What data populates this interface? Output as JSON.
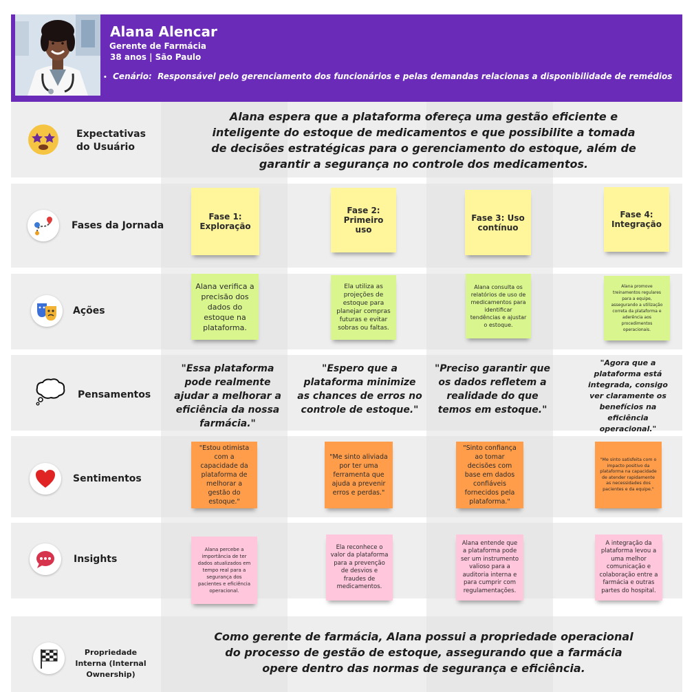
{
  "persona": {
    "name": "Alana Alencar",
    "role": "Gerente de Farmácia",
    "age_city": "38 anos | São Paulo",
    "scenario_label": "Cenário:",
    "scenario_text": "Responsável pelo gerenciamento dos funcionários e pelas demandas relacionas a disponibilidade de remédios"
  },
  "rows": {
    "expectations": {
      "label": "Expectativas do Usuário",
      "text": "Alana espera que a plataforma ofereça uma gestão eficiente e inteligente do estoque de medicamentos e que possibilite a tomada de decisões estratégicas para o gerenciamento do estoque, além de garantir a segurança no controle dos medicamentos."
    },
    "phases": {
      "label": "Fases da Jornada",
      "items": [
        "Fase 1: Exploração",
        "Fase 2: Primeiro uso",
        "Fase 3: Uso contínuo",
        "Fase 4: Integração"
      ]
    },
    "actions": {
      "label": "Ações",
      "items": [
        "Alana verifica a precisão dos dados do estoque na plataforma.",
        "Ela utiliza as projeções de estoque para planejar compras futuras e evitar sobras ou faltas.",
        "Alana consulta os relatórios de uso de medicamentos para identificar tendências e ajustar o estoque.",
        "Alana promove treinamentos regulares para a equipe, assegurando a utilização correta da plataforma e aderência aos procedimentos operacionais."
      ]
    },
    "thoughts": {
      "label": "Pensamentos",
      "items": [
        "\"Essa plataforma pode realmente ajudar a melhorar a eficiência da nossa farmácia.\"",
        "\"Espero que a plataforma minimize as chances de erros no controle de estoque.\"",
        "\"Preciso garantir que os dados refletem a realidade do que temos em estoque.\"",
        "\"Agora que a plataforma está integrada, consigo ver claramente os benefícios na eficiência operacional.\""
      ]
    },
    "feelings": {
      "label": "Sentimentos",
      "items": [
        "\"Estou otimista com a capacidade da plataforma de melhorar a gestão do estoque.\"",
        "\"Me sinto aliviada por ter uma ferramenta que ajuda a prevenir erros e perdas.\"",
        "\"Sinto confiança ao tomar decisões com base em dados confiáveis fornecidos pela plataforma.\"",
        "\"Me sinto satisfeita com o impacto positivo da plataforma na capacidade de atender rapidamente as necessidades dos pacientes e da equipe.\""
      ]
    },
    "insights": {
      "label": "Insights",
      "items": [
        "Alana percebe a importância de ter dados atualizados em tempo real para a segurança dos pacientes e eficiência operacional.",
        "Ela reconhece o valor da plataforma para a prevenção de desvios e fraudes de medicamentos.",
        "Alana entende que a plataforma pode ser um instrumento valioso para a auditoria interna e para cumprir com regulamentações.",
        "A integração da plataforma levou a uma melhor comunicação e colaboração entre a farmácia e outras partes do hospital."
      ]
    },
    "ownership": {
      "label": "Propriedade Interna (Internal Ownership)",
      "text": "Como gerente de farmácia, Alana possui a propriedade operacional do processo de gestão de estoque, assegurando que a farmácia opere dentro das normas de segurança e eficiência."
    }
  },
  "icons": {
    "expectations": "star-struck-face-icon",
    "phases": "route-map-icon",
    "actions": "theater-masks-icon",
    "thoughts": "thought-bubble-icon",
    "feelings": "red-heart-icon",
    "insights": "speech-bubble-icon",
    "ownership": "checkered-flag-icon"
  },
  "colors": {
    "header": "#6a2bb8",
    "phase_note": "#fff59a",
    "action_note": "#d9f58e",
    "feeling_note": "#ff9d4a",
    "insight_note": "#ffc6dc"
  }
}
